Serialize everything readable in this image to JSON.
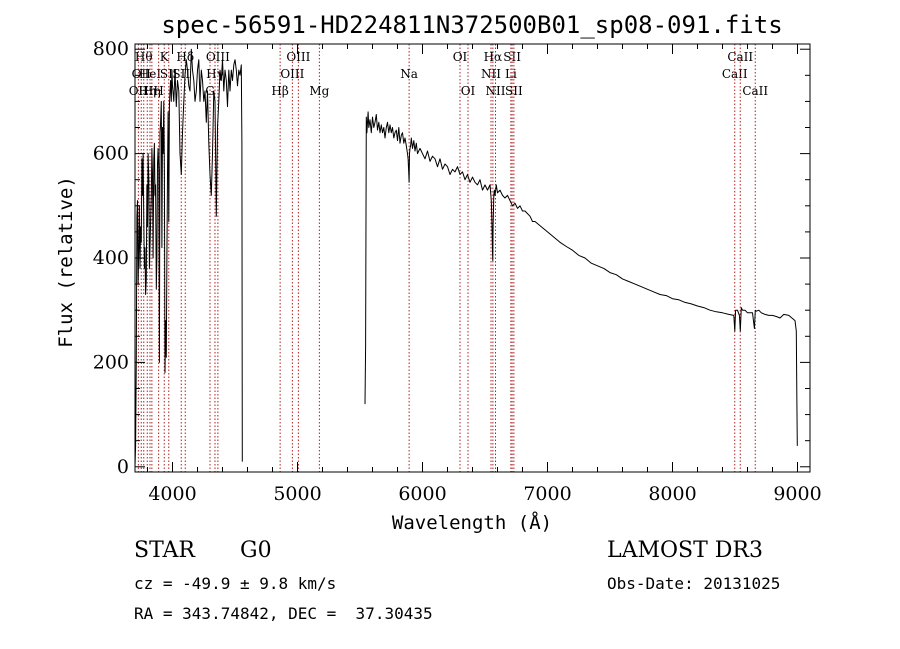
{
  "chart_data": {
    "type": "line",
    "title": "spec-56591-HD224811N372500B01_sp08-091.fits",
    "xlabel": "Wavelength (Å)",
    "ylabel": "Flux (relative)",
    "xlim": [
      3700,
      9100
    ],
    "ylim": [
      -10,
      810
    ],
    "xticks": [
      4000,
      5000,
      6000,
      7000,
      8000,
      9000
    ],
    "yticks": [
      0,
      200,
      400,
      600,
      800
    ],
    "grid": false,
    "series": [
      {
        "name": "spectrum",
        "segments": [
          {
            "x": [
              3700,
              3705,
              3710,
              3715,
              3720,
              3725,
              3730,
              3735,
              3740,
              3745,
              3750,
              3755,
              3760,
              3765,
              3770,
              3775,
              3780,
              3785,
              3790,
              3795,
              3800,
              3805,
              3810,
              3815,
              3820,
              3825,
              3830,
              3835,
              3840,
              3845,
              3850,
              3855,
              3860,
              3865,
              3870,
              3875,
              3880,
              3885,
              3890,
              3895,
              3900,
              3905,
              3910,
              3915,
              3920,
              3925,
              3930,
              3935,
              3940,
              3945,
              3950,
              3955,
              3960,
              3965,
              3970,
              3975,
              3980,
              3985,
              3990,
              3995,
              4000,
              4010,
              4020,
              4030,
              4040,
              4050,
              4060,
              4070,
              4080,
              4090,
              4100,
              4110,
              4120,
              4130,
              4140,
              4150,
              4160,
              4170,
              4180,
              4190,
              4200,
              4210,
              4220,
              4230,
              4240,
              4250,
              4260,
              4270,
              4280,
              4290,
              4300,
              4310,
              4320,
              4330,
              4340,
              4350,
              4360,
              4370,
              4380,
              4390,
              4400,
              4410,
              4420,
              4430,
              4440,
              4450,
              4460,
              4470,
              4480,
              4490,
              4500,
              4510,
              4520,
              4530,
              4540,
              4550,
              4555,
              4558
            ],
            "y": [
              0,
              40,
              210,
              480,
              510,
              350,
              420,
              500,
              380,
              460,
              430,
              590,
              520,
              600,
              470,
              380,
              420,
              330,
              360,
              540,
              460,
              600,
              550,
              380,
              420,
              470,
              520,
              610,
              560,
              400,
              590,
              620,
              520,
              540,
              340,
              400,
              580,
              610,
              570,
              200,
              640,
              660,
              700,
              420,
              650,
              600,
              700,
              560,
              180,
              280,
              210,
              400,
              560,
              680,
              470,
              690,
              720,
              740,
              700,
              760,
              730,
              700,
              760,
              690,
              740,
              720,
              600,
              560,
              640,
              700,
              750,
              780,
              760,
              730,
              720,
              800,
              760,
              740,
              700,
              720,
              760,
              780,
              700,
              760,
              740,
              700,
              720,
              660,
              720,
              620,
              560,
              520,
              600,
              720,
              700,
              480,
              650,
              700,
              760,
              740,
              780,
              720,
              760,
              740,
              690,
              760,
              720,
              760,
              740,
              770,
              780,
              760,
              730,
              760,
              750,
              770,
              620,
              10
            ]
          },
          {
            "x": [
              5540,
              5545,
              5550,
              5555,
              5560,
              5565,
              5570,
              5580,
              5590,
              5600,
              5610,
              5620,
              5630,
              5640,
              5650,
              5660,
              5670,
              5680,
              5690,
              5700,
              5710,
              5720,
              5730,
              5740,
              5750,
              5760,
              5770,
              5780,
              5790,
              5800,
              5810,
              5820,
              5830,
              5840,
              5850,
              5860,
              5870,
              5880,
              5885,
              5890,
              5893,
              5896,
              5900,
              5905,
              5910,
              5920,
              5930,
              5940,
              5950,
              5960,
              5980,
              6000,
              6020,
              6040,
              6060,
              6080,
              6100,
              6120,
              6140,
              6160,
              6180,
              6200,
              6220,
              6240,
              6260,
              6280,
              6300,
              6320,
              6340,
              6360,
              6380,
              6400,
              6420,
              6440,
              6460,
              6480,
              6500,
              6520,
              6540,
              6550,
              6555,
              6560,
              6562,
              6565,
              6570,
              6575,
              6580,
              6590,
              6600,
              6620,
              6640,
              6660,
              6680,
              6700,
              6720,
              6740,
              6760,
              6780,
              6800,
              6820,
              6840,
              6860,
              6880,
              6900,
              6950,
              7000,
              7050,
              7100,
              7150,
              7200,
              7250,
              7300,
              7350,
              7400,
              7450,
              7500,
              7550,
              7600,
              7650,
              7700,
              7750,
              7800,
              7850,
              7900,
              7950,
              8000,
              8050,
              8100,
              8150,
              8200,
              8250,
              8300,
              8350,
              8400,
              8450,
              8490,
              8498,
              8505,
              8520,
              8535,
              8542,
              8550,
              8560,
              8580,
              8600,
              8640,
              8655,
              8662,
              8670,
              8690,
              8710,
              8740,
              8770,
              8800,
              8830,
              8860,
              8890,
              8930,
              8960,
              8980,
              8990,
              8995,
              8998
            ],
            "y": [
              120,
              230,
              670,
              640,
              660,
              680,
              650,
              665,
              640,
              670,
              650,
              660,
              675,
              645,
              660,
              640,
              655,
              640,
              650,
              630,
              650,
              660,
              640,
              655,
              640,
              650,
              630,
              640,
              645,
              625,
              650,
              620,
              635,
              640,
              620,
              630,
              615,
              600,
              590,
              560,
              545,
              600,
              610,
              615,
              630,
              610,
              625,
              605,
              620,
              600,
              610,
              600,
              590,
              605,
              585,
              595,
              590,
              575,
              590,
              570,
              580,
              575,
              560,
              570,
              565,
              575,
              560,
              565,
              550,
              560,
              545,
              555,
              545,
              540,
              550,
              530,
              540,
              530,
              540,
              510,
              470,
              410,
              395,
              460,
              520,
              530,
              520,
              540,
              525,
              530,
              520,
              515,
              520,
              510,
              500,
              505,
              495,
              500,
              490,
              490,
              485,
              480,
              470,
              470,
              460,
              450,
              440,
              430,
              422,
              415,
              405,
              400,
              390,
              385,
              380,
              372,
              368,
              360,
              355,
              350,
              345,
              340,
              335,
              330,
              328,
              322,
              320,
              315,
              312,
              308,
              305,
              300,
              297,
              295,
              292,
              290,
              260,
              300,
              300,
              290,
              260,
              305,
              300,
              300,
              295,
              295,
              265,
              300,
              298,
              300,
              295,
              292,
              290,
              290,
              288,
              285,
              292,
              290,
              284,
              280,
              260,
              120,
              40
            ]
          }
        ]
      }
    ],
    "line_markers": [
      {
        "wavelength": 3727,
        "labels": [
          "OII"
        ],
        "row": 3
      },
      {
        "wavelength": 3750,
        "labels": [
          "OII"
        ],
        "row": 2
      },
      {
        "wavelength": 3770,
        "labels": [
          "Hθ"
        ],
        "row": 1
      },
      {
        "wavelength": 3798,
        "labels": [
          "Hη"
        ],
        "row": 3
      },
      {
        "wavelength": 3820,
        "labels": [
          "HeI"
        ],
        "row": 2
      },
      {
        "wavelength": 3835,
        "labels": [
          "Hη"
        ],
        "row": 3
      },
      {
        "wavelength": 3889,
        "labels": [
          "H"
        ],
        "row": 3
      },
      {
        "wavelength": 3934,
        "labels": [
          "K"
        ],
        "row": 1
      },
      {
        "wavelength": 3970,
        "labels": [
          "SII"
        ],
        "row": 2
      },
      {
        "wavelength": 4070,
        "labels": [
          "SII"
        ],
        "row": 2
      },
      {
        "wavelength": 4102,
        "labels": [
          "Hδ"
        ],
        "row": 1
      },
      {
        "wavelength": 4300,
        "labels": [
          "G"
        ],
        "row": 3
      },
      {
        "wavelength": 4340,
        "labels": [
          "Hγ"
        ],
        "row": 2
      },
      {
        "wavelength": 4363,
        "labels": [
          "OIII"
        ],
        "row": 1
      },
      {
        "wavelength": 4861,
        "labels": [
          "Hβ"
        ],
        "row": 3
      },
      {
        "wavelength": 4959,
        "labels": [
          "OIII"
        ],
        "row": 2
      },
      {
        "wavelength": 5007,
        "labels": [
          "OIII"
        ],
        "row": 1
      },
      {
        "wavelength": 5175,
        "labels": [
          "Mg"
        ],
        "row": 3
      },
      {
        "wavelength": 5893,
        "labels": [
          "Na"
        ],
        "row": 2
      },
      {
        "wavelength": 6300,
        "labels": [
          "OI"
        ],
        "row": 1
      },
      {
        "wavelength": 6364,
        "labels": [
          "OI"
        ],
        "row": 3
      },
      {
        "wavelength": 6548,
        "labels": [
          "NII"
        ],
        "row": 2
      },
      {
        "wavelength": 6563,
        "labels": [
          "Hα"
        ],
        "row": 1
      },
      {
        "wavelength": 6584,
        "labels": [
          "NII"
        ],
        "row": 3
      },
      {
        "wavelength": 6707,
        "labels": [
          "Li"
        ],
        "row": 2
      },
      {
        "wavelength": 6717,
        "labels": [
          "SII"
        ],
        "row": 1
      },
      {
        "wavelength": 6731,
        "labels": [
          "SII"
        ],
        "row": 3
      },
      {
        "wavelength": 8498,
        "labels": [
          "CaII"
        ],
        "row": 2
      },
      {
        "wavelength": 8542,
        "labels": [
          "CaII"
        ],
        "row": 1
      },
      {
        "wavelength": 8662,
        "labels": [
          "CaII"
        ],
        "row": 3
      }
    ]
  },
  "info": {
    "class_label": "STAR",
    "subclass": "G0",
    "survey": "LAMOST DR3",
    "cz": "cz = -49.9 ± 9.8 km/s",
    "obs_date": "Obs-Date: 20131025",
    "coords": "RA = 343.74842, DEC =  37.30435"
  },
  "colors": {
    "line": "#000000",
    "marker": "#b22222",
    "background": "#ffffff"
  }
}
